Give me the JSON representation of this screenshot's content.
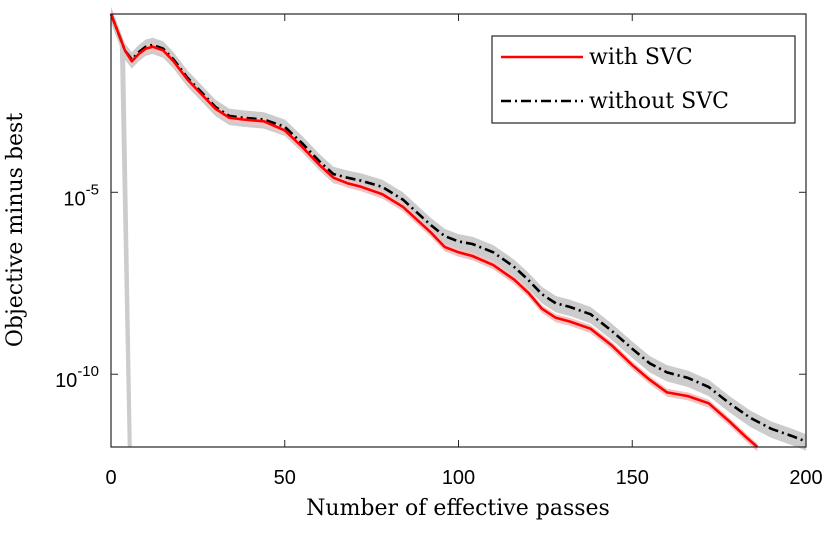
{
  "chart_data": {
    "type": "line",
    "xlabel": "Number of effective passes",
    "ylabel": "Objective minus best",
    "xlim": [
      0,
      200
    ],
    "ylim_log10": [
      -12,
      -0.1
    ],
    "yscale": "log",
    "xticks": [
      0,
      50,
      100,
      150,
      200
    ],
    "xtick_labels": [
      "0",
      "50",
      "100",
      "150",
      "200"
    ],
    "yticks_log10": [
      -5,
      -10
    ],
    "ytick_labels": [
      {
        "base": "10",
        "exp": "-5"
      },
      {
        "base": "10",
        "exp": "-10"
      }
    ],
    "legend_position": "top-right",
    "colors": {
      "with_svc": "#ff0000",
      "without_svc": "#000000",
      "band_without": "#cccccc",
      "band_with": "#f3c3c3"
    },
    "series": [
      {
        "name": "with SVC",
        "style": "solid",
        "x_log10y": [
          [
            0,
            -0.1
          ],
          [
            2,
            -0.6
          ],
          [
            4,
            -1.1
          ],
          [
            6,
            -1.4
          ],
          [
            8,
            -1.2
          ],
          [
            10,
            -1.05
          ],
          [
            12,
            -1.0
          ],
          [
            15,
            -1.1
          ],
          [
            18,
            -1.4
          ],
          [
            22,
            -1.9
          ],
          [
            26,
            -2.3
          ],
          [
            30,
            -2.7
          ],
          [
            34,
            -2.95
          ],
          [
            38,
            -3.0
          ],
          [
            44,
            -3.05
          ],
          [
            50,
            -3.3
          ],
          [
            55,
            -3.75
          ],
          [
            60,
            -4.25
          ],
          [
            64,
            -4.6
          ],
          [
            68,
            -4.75
          ],
          [
            72,
            -4.85
          ],
          [
            78,
            -5.05
          ],
          [
            84,
            -5.4
          ],
          [
            88,
            -5.75
          ],
          [
            92,
            -6.1
          ],
          [
            96,
            -6.5
          ],
          [
            100,
            -6.65
          ],
          [
            104,
            -6.75
          ],
          [
            110,
            -7.0
          ],
          [
            116,
            -7.4
          ],
          [
            120,
            -7.75
          ],
          [
            124,
            -8.2
          ],
          [
            128,
            -8.45
          ],
          [
            132,
            -8.55
          ],
          [
            138,
            -8.75
          ],
          [
            144,
            -9.2
          ],
          [
            150,
            -9.75
          ],
          [
            155,
            -10.15
          ],
          [
            160,
            -10.5
          ],
          [
            166,
            -10.6
          ],
          [
            172,
            -10.8
          ],
          [
            178,
            -11.3
          ],
          [
            183,
            -11.75
          ],
          [
            186,
            -12.0
          ]
        ]
      },
      {
        "name": "without SVC",
        "style": "dashdot",
        "x_log10y": [
          [
            0,
            -0.1
          ],
          [
            2,
            -0.6
          ],
          [
            4,
            -1.1
          ],
          [
            6,
            -1.35
          ],
          [
            8,
            -1.15
          ],
          [
            10,
            -1.0
          ],
          [
            12,
            -0.95
          ],
          [
            15,
            -1.05
          ],
          [
            18,
            -1.35
          ],
          [
            22,
            -1.85
          ],
          [
            26,
            -2.25
          ],
          [
            30,
            -2.65
          ],
          [
            34,
            -2.9
          ],
          [
            38,
            -2.95
          ],
          [
            44,
            -3.0
          ],
          [
            50,
            -3.2
          ],
          [
            55,
            -3.65
          ],
          [
            60,
            -4.15
          ],
          [
            64,
            -4.5
          ],
          [
            68,
            -4.6
          ],
          [
            72,
            -4.68
          ],
          [
            78,
            -4.85
          ],
          [
            84,
            -5.2
          ],
          [
            88,
            -5.55
          ],
          [
            92,
            -5.9
          ],
          [
            96,
            -6.2
          ],
          [
            100,
            -6.35
          ],
          [
            104,
            -6.42
          ],
          [
            110,
            -6.65
          ],
          [
            116,
            -7.05
          ],
          [
            120,
            -7.4
          ],
          [
            124,
            -7.8
          ],
          [
            128,
            -8.05
          ],
          [
            132,
            -8.15
          ],
          [
            138,
            -8.35
          ],
          [
            144,
            -8.8
          ],
          [
            150,
            -9.3
          ],
          [
            155,
            -9.7
          ],
          [
            160,
            -9.95
          ],
          [
            166,
            -10.1
          ],
          [
            172,
            -10.35
          ],
          [
            178,
            -10.8
          ],
          [
            184,
            -11.2
          ],
          [
            190,
            -11.5
          ],
          [
            196,
            -11.7
          ],
          [
            200,
            -11.85
          ]
        ]
      }
    ],
    "band_dip": [
      [
        4,
        -0.9
      ],
      [
        6,
        -12.0
      ]
    ]
  },
  "legend": {
    "items": [
      {
        "label": "with SVC"
      },
      {
        "label": "without SVC"
      }
    ]
  }
}
